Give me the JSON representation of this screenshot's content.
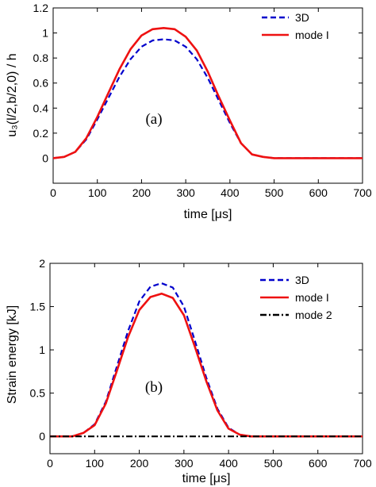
{
  "chart_data": [
    {
      "type": "line",
      "panel_label": "(a)",
      "xlabel": "time [μs]",
      "ylabel": "u₃(l/2,b/2,0) / h",
      "xlim": [
        0,
        700
      ],
      "ylim": [
        -0.2,
        1.2
      ],
      "xticks": [
        "0",
        "100",
        "200",
        "300",
        "400",
        "500",
        "600",
        "700"
      ],
      "yticks": [
        "0",
        "0.2",
        "0.4",
        "0.6",
        "0.8",
        "1",
        "1.2"
      ],
      "legend_position": "top-right",
      "series": [
        {
          "name": "3D",
          "color": "#0000cc",
          "style": "dashed",
          "x": [
            0,
            25,
            50,
            75,
            100,
            125,
            150,
            175,
            200,
            225,
            250,
            275,
            300,
            325,
            350,
            375,
            400,
            425,
            450,
            475,
            500,
            550,
            600,
            650,
            700
          ],
          "y": [
            0.0,
            0.01,
            0.05,
            0.15,
            0.31,
            0.48,
            0.65,
            0.79,
            0.89,
            0.94,
            0.95,
            0.94,
            0.89,
            0.79,
            0.64,
            0.46,
            0.28,
            0.12,
            0.03,
            0.01,
            0.0,
            0.0,
            0.0,
            0.0,
            0.0
          ]
        },
        {
          "name": "mode I",
          "color": "#ee1111",
          "style": "solid",
          "x": [
            0,
            25,
            50,
            75,
            100,
            125,
            150,
            175,
            200,
            225,
            250,
            275,
            300,
            325,
            350,
            375,
            400,
            425,
            450,
            475,
            500,
            550,
            600,
            650,
            700
          ],
          "y": [
            0.0,
            0.01,
            0.05,
            0.16,
            0.33,
            0.52,
            0.71,
            0.87,
            0.98,
            1.03,
            1.04,
            1.03,
            0.97,
            0.86,
            0.69,
            0.49,
            0.3,
            0.12,
            0.03,
            0.01,
            0.0,
            0.0,
            0.0,
            0.0,
            0.0
          ]
        }
      ]
    },
    {
      "type": "line",
      "panel_label": "(b)",
      "xlabel": "time [μs]",
      "ylabel": "Strain energy [kJ]",
      "xlim": [
        0,
        700
      ],
      "ylim": [
        -0.2,
        2
      ],
      "xticks": [
        "0",
        "100",
        "200",
        "300",
        "400",
        "500",
        "600",
        "700"
      ],
      "yticks": [
        "0",
        "0.5",
        "1",
        "1.5",
        "2"
      ],
      "legend_position": "top-right",
      "series": [
        {
          "name": "3D",
          "color": "#0000cc",
          "style": "dashed",
          "x": [
            0,
            50,
            75,
            100,
            125,
            150,
            175,
            200,
            225,
            250,
            275,
            300,
            325,
            350,
            375,
            400,
            425,
            450,
            500,
            550,
            600,
            650,
            700
          ],
          "y": [
            0.0,
            0.0,
            0.04,
            0.14,
            0.4,
            0.81,
            1.22,
            1.56,
            1.73,
            1.77,
            1.72,
            1.5,
            1.1,
            0.68,
            0.32,
            0.1,
            0.02,
            0.0,
            0.0,
            0.0,
            0.0,
            0.0,
            0.0
          ]
        },
        {
          "name": "mode I",
          "color": "#ee1111",
          "style": "solid",
          "x": [
            0,
            50,
            75,
            100,
            125,
            150,
            175,
            200,
            225,
            250,
            275,
            300,
            325,
            350,
            375,
            400,
            425,
            450,
            500,
            550,
            600,
            650,
            700
          ],
          "y": [
            0.0,
            0.0,
            0.04,
            0.13,
            0.38,
            0.76,
            1.15,
            1.46,
            1.61,
            1.65,
            1.6,
            1.4,
            1.03,
            0.64,
            0.3,
            0.09,
            0.02,
            0.0,
            0.0,
            0.0,
            0.0,
            0.0,
            0.0
          ]
        },
        {
          "name": "mode 2",
          "color": "#000000",
          "style": "dashdot",
          "x": [
            0,
            700
          ],
          "y": [
            0.0,
            0.0
          ]
        }
      ]
    }
  ]
}
